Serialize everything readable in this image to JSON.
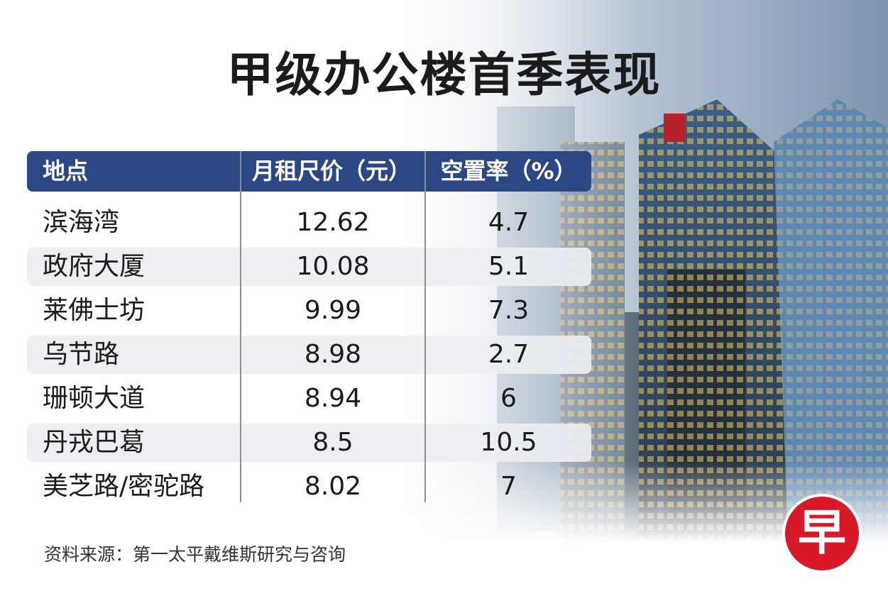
{
  "header": {
    "title": "甲级办公楼首季表现"
  },
  "table": {
    "columns": [
      "地点",
      "月租尺价（元）",
      "空置率（%）"
    ],
    "rows": [
      [
        "滨海湾",
        12.62,
        4.7
      ],
      [
        "政府大厦",
        10.08,
        5.1
      ],
      [
        "莱佛士坊",
        9.99,
        7.3
      ],
      [
        "乌节路",
        8.98,
        2.7
      ],
      [
        "珊顿大道",
        8.94,
        6
      ],
      [
        "丹戎巴葛",
        8.5,
        10.5
      ],
      [
        "美芝路/密驼路",
        8.02,
        7
      ]
    ]
  },
  "source": "资料来源：第一太平戴维斯研究与咨询",
  "logo": "早"
}
